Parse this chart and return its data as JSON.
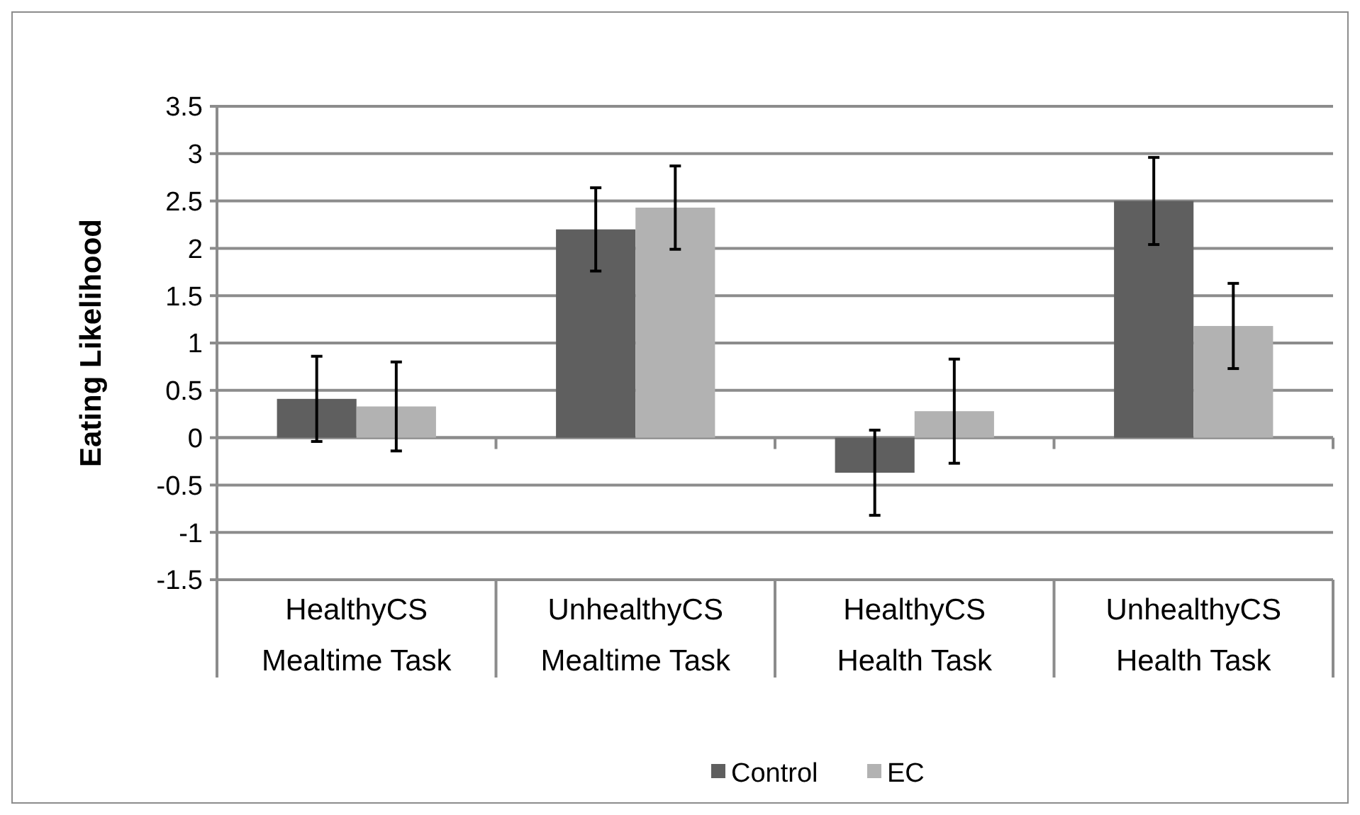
{
  "chart_data": {
    "type": "bar",
    "ylabel": "Eating Likelihood",
    "categories": [
      "HealthyCS\nMealtime Task",
      "UnhealthyCS\nMealtime Task",
      "HealthyCS\nHealth Task",
      "UnhealthyCS\nHealth Task"
    ],
    "series": [
      {
        "name": "Control",
        "color": "#5f5f5f",
        "values": [
          0.41,
          2.2,
          -0.37,
          2.5
        ],
        "errors": [
          0.45,
          0.44,
          0.45,
          0.46
        ]
      },
      {
        "name": "EC",
        "color": "#b2b2b2",
        "values": [
          0.33,
          2.43,
          0.28,
          1.18
        ],
        "errors": [
          0.47,
          0.44,
          0.55,
          0.45
        ]
      }
    ],
    "ylim": [
      -1.5,
      3.5
    ],
    "yticks": [
      -1.5,
      -1,
      -0.5,
      0,
      0.5,
      1,
      1.5,
      2,
      2.5,
      3,
      3.5
    ],
    "grid": "y",
    "legend": "bottom"
  }
}
